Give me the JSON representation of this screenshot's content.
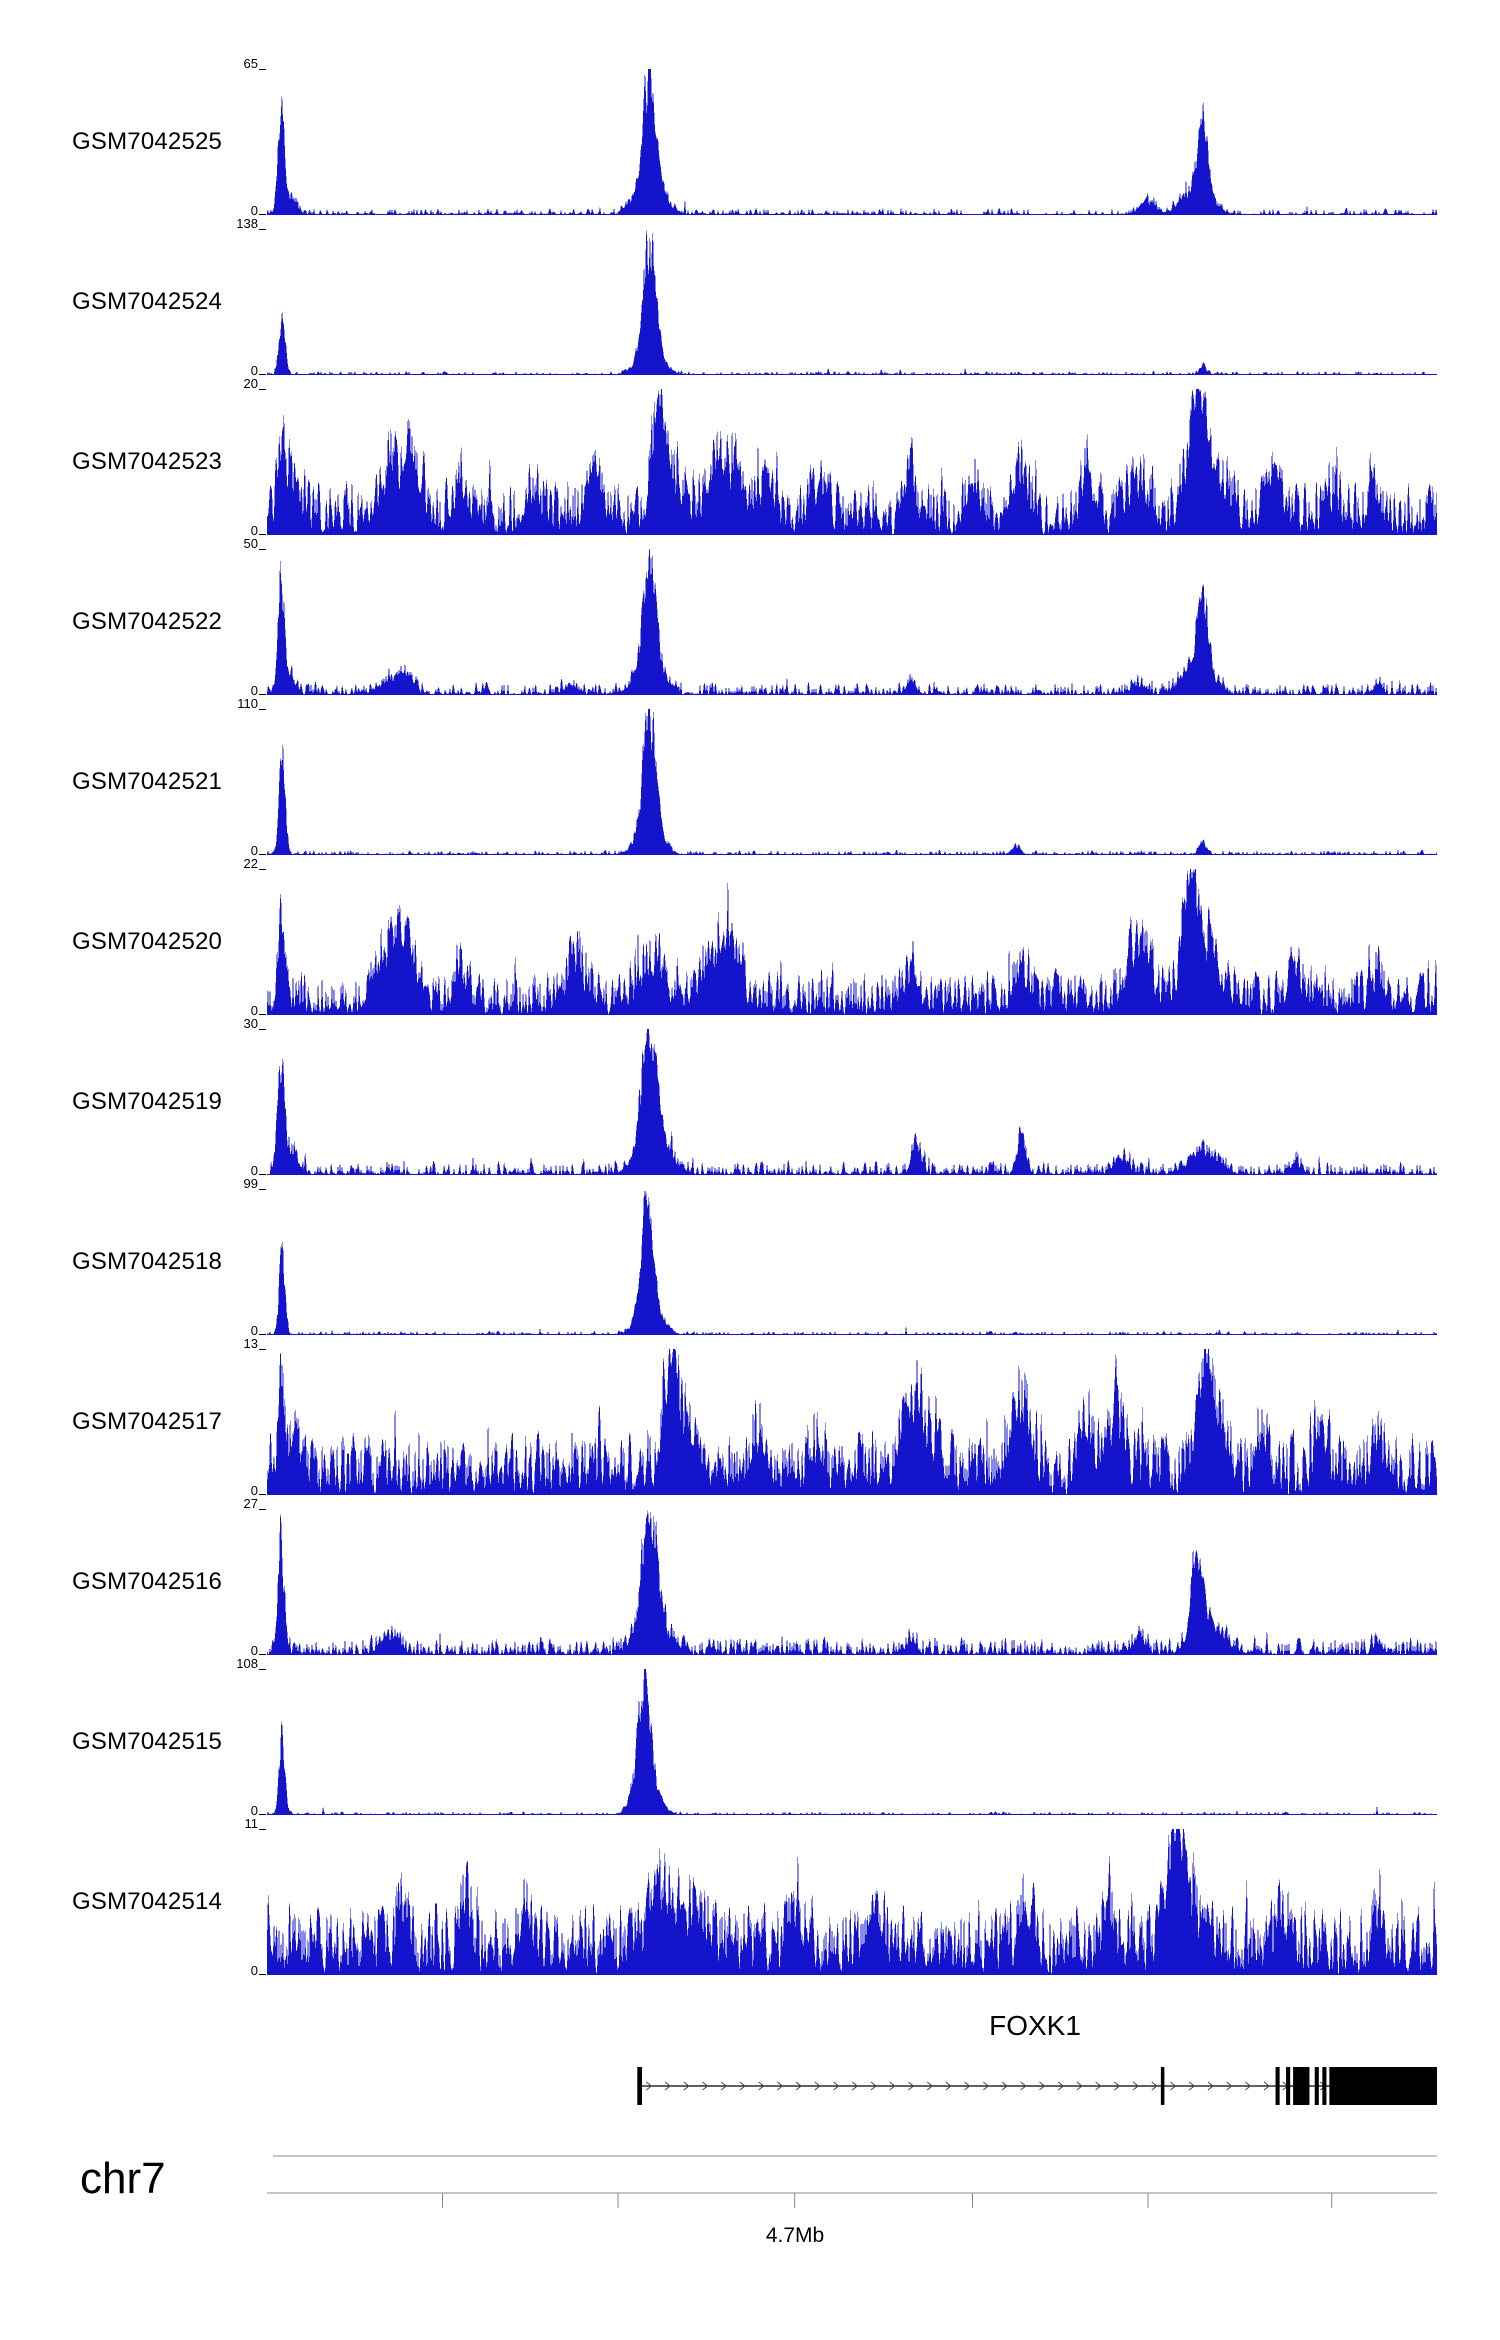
{
  "chart_data": {
    "type": "area",
    "description": "Genome browser coverage tracks over chr7 around FOXK1",
    "signal_color": "#1414CC",
    "y_zero_label": "0",
    "tracks": [
      {
        "label": "GSM7042525",
        "ymax": 65,
        "ymin": 0,
        "noise": 0.05,
        "noise_pow": 3.2,
        "spike_p": 0.01,
        "spike_h": 0.08,
        "peaks": [
          [
            0.012,
            0.0025,
            0.95
          ],
          [
            0.018,
            0.006,
            0.18
          ],
          [
            0.327,
            0.005,
            1.0
          ],
          [
            0.327,
            0.012,
            0.28
          ],
          [
            0.8,
            0.004,
            0.62
          ],
          [
            0.795,
            0.012,
            0.26
          ],
          [
            0.752,
            0.006,
            0.12
          ]
        ]
      },
      {
        "label": "GSM7042524",
        "ymax": 138,
        "ymin": 0,
        "noise": 0.028,
        "noise_pow": 3.4,
        "spike_p": 0.006,
        "spike_h": 0.05,
        "peaks": [
          [
            0.013,
            0.0025,
            0.62
          ],
          [
            0.327,
            0.005,
            1.0
          ],
          [
            0.327,
            0.01,
            0.25
          ],
          [
            0.8,
            0.003,
            0.09
          ]
        ]
      },
      {
        "label": "GSM7042523",
        "ymax": 20,
        "ymin": 0,
        "noise": 0.38,
        "noise_pow": 1.35,
        "spike_p": 0.04,
        "spike_h": 0.3,
        "peaks": [
          [
            0.012,
            0.003,
            0.6
          ],
          [
            0.02,
            0.006,
            0.35
          ],
          [
            0.105,
            0.012,
            0.45
          ],
          [
            0.125,
            0.008,
            0.4
          ],
          [
            0.165,
            0.006,
            0.3
          ],
          [
            0.225,
            0.006,
            0.25
          ],
          [
            0.28,
            0.008,
            0.4
          ],
          [
            0.335,
            0.006,
            0.65
          ],
          [
            0.345,
            0.012,
            0.35
          ],
          [
            0.385,
            0.008,
            0.45
          ],
          [
            0.4,
            0.006,
            0.4
          ],
          [
            0.425,
            0.008,
            0.3
          ],
          [
            0.47,
            0.008,
            0.25
          ],
          [
            0.55,
            0.004,
            0.6
          ],
          [
            0.605,
            0.006,
            0.3
          ],
          [
            0.645,
            0.005,
            0.5
          ],
          [
            0.7,
            0.005,
            0.45
          ],
          [
            0.745,
            0.008,
            0.4
          ],
          [
            0.795,
            0.007,
            0.95
          ],
          [
            0.805,
            0.015,
            0.4
          ],
          [
            0.86,
            0.007,
            0.35
          ],
          [
            0.91,
            0.006,
            0.25
          ],
          [
            0.945,
            0.005,
            0.3
          ]
        ]
      },
      {
        "label": "GSM7042522",
        "ymax": 50,
        "ymin": 0,
        "noise": 0.09,
        "noise_pow": 2.6,
        "spike_p": 0.02,
        "spike_h": 0.1,
        "peaks": [
          [
            0.012,
            0.0025,
            0.95
          ],
          [
            0.018,
            0.005,
            0.2
          ],
          [
            0.105,
            0.01,
            0.13
          ],
          [
            0.12,
            0.006,
            0.11
          ],
          [
            0.26,
            0.006,
            0.09
          ],
          [
            0.327,
            0.005,
            1.0
          ],
          [
            0.327,
            0.011,
            0.3
          ],
          [
            0.55,
            0.005,
            0.08
          ],
          [
            0.745,
            0.006,
            0.1
          ],
          [
            0.8,
            0.004,
            0.7
          ],
          [
            0.795,
            0.012,
            0.28
          ],
          [
            0.95,
            0.004,
            0.08
          ]
        ]
      },
      {
        "label": "GSM7042521",
        "ymax": 110,
        "ymin": 0,
        "noise": 0.035,
        "noise_pow": 3.2,
        "spike_p": 0.008,
        "spike_h": 0.06,
        "peaks": [
          [
            0.013,
            0.0025,
            0.95
          ],
          [
            0.327,
            0.005,
            1.0
          ],
          [
            0.327,
            0.01,
            0.3
          ],
          [
            0.64,
            0.004,
            0.08
          ],
          [
            0.8,
            0.003,
            0.12
          ]
        ]
      },
      {
        "label": "GSM7042520",
        "ymax": 22,
        "ymin": 0,
        "noise": 0.32,
        "noise_pow": 1.4,
        "spike_p": 0.035,
        "spike_h": 0.28,
        "peaks": [
          [
            0.012,
            0.003,
            0.7
          ],
          [
            0.105,
            0.012,
            0.45
          ],
          [
            0.12,
            0.007,
            0.4
          ],
          [
            0.165,
            0.006,
            0.28
          ],
          [
            0.265,
            0.008,
            0.35
          ],
          [
            0.33,
            0.01,
            0.4
          ],
          [
            0.385,
            0.012,
            0.45
          ],
          [
            0.4,
            0.006,
            0.4
          ],
          [
            0.55,
            0.006,
            0.3
          ],
          [
            0.645,
            0.006,
            0.3
          ],
          [
            0.745,
            0.01,
            0.5
          ],
          [
            0.79,
            0.006,
            0.95
          ],
          [
            0.8,
            0.014,
            0.45
          ],
          [
            0.88,
            0.006,
            0.28
          ],
          [
            0.95,
            0.005,
            0.25
          ]
        ]
      },
      {
        "label": "GSM7042519",
        "ymax": 30,
        "ymin": 0,
        "noise": 0.1,
        "noise_pow": 2.4,
        "spike_p": 0.02,
        "spike_h": 0.12,
        "peaks": [
          [
            0.012,
            0.003,
            0.9
          ],
          [
            0.02,
            0.006,
            0.22
          ],
          [
            0.327,
            0.006,
            1.0
          ],
          [
            0.33,
            0.013,
            0.33
          ],
          [
            0.555,
            0.004,
            0.28
          ],
          [
            0.645,
            0.004,
            0.32
          ],
          [
            0.73,
            0.006,
            0.15
          ],
          [
            0.8,
            0.012,
            0.22
          ],
          [
            0.88,
            0.005,
            0.1
          ]
        ]
      },
      {
        "label": "GSM7042518",
        "ymax": 99,
        "ymin": 0,
        "noise": 0.03,
        "noise_pow": 3.3,
        "spike_p": 0.006,
        "spike_h": 0.05,
        "peaks": [
          [
            0.013,
            0.0025,
            0.73
          ],
          [
            0.325,
            0.005,
            1.0
          ],
          [
            0.327,
            0.01,
            0.26
          ]
        ]
      },
      {
        "label": "GSM7042517",
        "ymax": 13,
        "ymin": 0,
        "noise": 0.45,
        "noise_pow": 1.25,
        "spike_p": 0.05,
        "spike_h": 0.3,
        "peaks": [
          [
            0.012,
            0.003,
            0.7
          ],
          [
            0.025,
            0.004,
            0.45
          ],
          [
            0.345,
            0.005,
            0.95
          ],
          [
            0.355,
            0.012,
            0.45
          ],
          [
            0.42,
            0.006,
            0.35
          ],
          [
            0.47,
            0.005,
            0.35
          ],
          [
            0.55,
            0.007,
            0.65
          ],
          [
            0.565,
            0.01,
            0.4
          ],
          [
            0.645,
            0.008,
            0.7
          ],
          [
            0.7,
            0.005,
            0.45
          ],
          [
            0.725,
            0.007,
            0.65
          ],
          [
            0.8,
            0.005,
            0.8
          ],
          [
            0.81,
            0.01,
            0.5
          ],
          [
            0.85,
            0.005,
            0.35
          ],
          [
            0.9,
            0.005,
            0.4
          ],
          [
            0.95,
            0.004,
            0.35
          ]
        ]
      },
      {
        "label": "GSM7042516",
        "ymax": 27,
        "ymin": 0,
        "noise": 0.13,
        "noise_pow": 2.2,
        "spike_p": 0.025,
        "spike_h": 0.12,
        "peaks": [
          [
            0.012,
            0.003,
            0.9
          ],
          [
            0.105,
            0.008,
            0.14
          ],
          [
            0.327,
            0.006,
            1.0
          ],
          [
            0.33,
            0.012,
            0.33
          ],
          [
            0.55,
            0.005,
            0.12
          ],
          [
            0.745,
            0.006,
            0.12
          ],
          [
            0.795,
            0.005,
            0.66
          ],
          [
            0.805,
            0.012,
            0.28
          ],
          [
            0.95,
            0.004,
            0.1
          ]
        ]
      },
      {
        "label": "GSM7042515",
        "ymax": 108,
        "ymin": 0,
        "noise": 0.025,
        "noise_pow": 3.4,
        "spike_p": 0.005,
        "spike_h": 0.05,
        "peaks": [
          [
            0.013,
            0.0025,
            0.76
          ],
          [
            0.322,
            0.005,
            1.0
          ],
          [
            0.324,
            0.01,
            0.3
          ]
        ]
      },
      {
        "label": "GSM7042514",
        "ymax": 11,
        "ymin": 0,
        "noise": 0.5,
        "noise_pow": 1.15,
        "spike_p": 0.05,
        "spike_h": 0.3,
        "peaks": [
          [
            0.115,
            0.004,
            0.45
          ],
          [
            0.17,
            0.004,
            0.5
          ],
          [
            0.22,
            0.004,
            0.35
          ],
          [
            0.335,
            0.008,
            0.5
          ],
          [
            0.36,
            0.015,
            0.4
          ],
          [
            0.45,
            0.006,
            0.35
          ],
          [
            0.52,
            0.005,
            0.35
          ],
          [
            0.65,
            0.006,
            0.35
          ],
          [
            0.72,
            0.005,
            0.4
          ],
          [
            0.775,
            0.006,
            0.95
          ],
          [
            0.785,
            0.012,
            0.55
          ],
          [
            0.87,
            0.005,
            0.35
          ],
          [
            0.95,
            0.004,
            0.4
          ]
        ]
      }
    ],
    "gene": {
      "name": "FOXK1",
      "strand": "+",
      "line_start": 0.3165,
      "line_end": 1.0,
      "exons": [
        {
          "x": 0.3165,
          "w": 0.004
        },
        {
          "x": 0.764,
          "w": 0.003
        },
        {
          "x": 0.862,
          "w": 0.0035
        },
        {
          "x": 0.871,
          "w": 0.0035
        },
        {
          "x": 0.877,
          "w": 0.014
        },
        {
          "x": 0.8955,
          "w": 0.0035
        },
        {
          "x": 0.902,
          "w": 0.0035
        },
        {
          "x": 0.908,
          "w": 0.092
        }
      ]
    },
    "x_axis": {
      "chrom": "chr7",
      "scale_label": "4.7Mb",
      "ticks": [
        0.15,
        0.3,
        0.451,
        0.603,
        0.753,
        0.91
      ],
      "label_tick": 0.451
    }
  }
}
